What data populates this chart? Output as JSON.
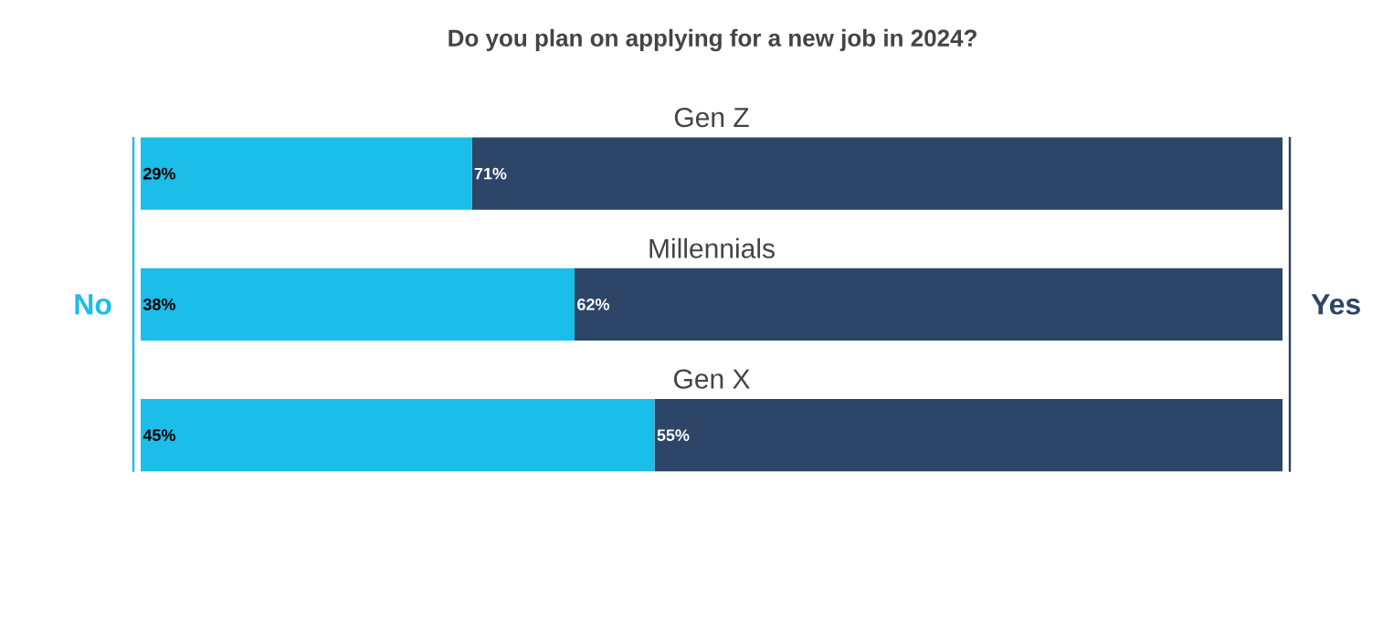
{
  "chart_data": {
    "type": "bar",
    "orientation": "horizontal",
    "stacked": true,
    "title": "Do you plan on applying for a new job in 2024?",
    "categories": [
      "Gen Z",
      "Millennials",
      "Gen X"
    ],
    "series": [
      {
        "name": "No",
        "color": "#1bbde9",
        "values": [
          29,
          38,
          45
        ],
        "value_labels": [
          "29%",
          "38%",
          "45%"
        ]
      },
      {
        "name": "Yes",
        "color": "#2d4566",
        "values": [
          71,
          62,
          55
        ],
        "value_labels": [
          "71%",
          "62%",
          "55%"
        ]
      }
    ]
  }
}
